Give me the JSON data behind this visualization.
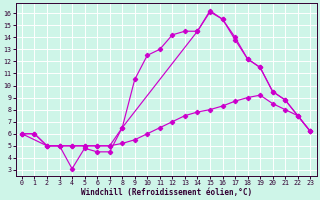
{
  "xlabel": "Windchill (Refroidissement éolien,°C)",
  "xlim": [
    -0.5,
    23.5
  ],
  "ylim": [
    2.5,
    16.8
  ],
  "xticks": [
    0,
    1,
    2,
    3,
    4,
    5,
    6,
    7,
    8,
    9,
    10,
    11,
    12,
    13,
    14,
    15,
    16,
    17,
    18,
    19,
    20,
    21,
    22,
    23
  ],
  "yticks": [
    3,
    4,
    5,
    6,
    7,
    8,
    9,
    10,
    11,
    12,
    13,
    14,
    15,
    16
  ],
  "bg_color": "#cef5e8",
  "line_color": "#cc00cc",
  "grid_color": "#ffffff",
  "line1_x": [
    0,
    1,
    2,
    3,
    4,
    5,
    6,
    7,
    8,
    9,
    10,
    11,
    12,
    13,
    14,
    15,
    16,
    17,
    18,
    19,
    20,
    21,
    22,
    23
  ],
  "line1_y": [
    6.0,
    6.0,
    5.0,
    5.0,
    5.0,
    5.0,
    5.0,
    5.0,
    5.2,
    5.5,
    6.0,
    6.5,
    7.0,
    7.5,
    7.8,
    8.0,
    8.3,
    8.7,
    9.0,
    9.2,
    8.5,
    8.0,
    7.5,
    6.2
  ],
  "line2_x": [
    0,
    1,
    2,
    3,
    4,
    5,
    6,
    7,
    8,
    9,
    10,
    11,
    12,
    13,
    14,
    15,
    16,
    17,
    18,
    19,
    20,
    21,
    22,
    23
  ],
  "line2_y": [
    6.0,
    6.0,
    5.0,
    5.0,
    5.0,
    5.0,
    5.0,
    5.0,
    6.5,
    10.5,
    12.5,
    13.0,
    14.2,
    14.5,
    14.5,
    16.2,
    15.5,
    13.8,
    12.2,
    11.5,
    9.5,
    8.8,
    7.5,
    6.2
  ],
  "line3_x": [
    0,
    2,
    3,
    4,
    5,
    6,
    7,
    8,
    14,
    15,
    16,
    17,
    18,
    19,
    20,
    21,
    22,
    23
  ],
  "line3_y": [
    6.0,
    5.0,
    5.0,
    3.1,
    4.8,
    4.5,
    4.5,
    6.5,
    14.5,
    16.1,
    15.5,
    14.0,
    12.2,
    11.5,
    9.5,
    8.8,
    7.5,
    6.2
  ],
  "tick_color": "#330033",
  "spine_color": "#330033",
  "xlabel_color": "#330033",
  "tick_fontsize": 4.8,
  "xlabel_fontsize": 5.5,
  "linewidth": 0.85,
  "markersize": 2.2
}
